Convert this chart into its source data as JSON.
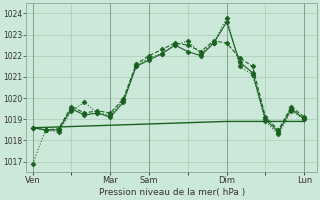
{
  "xlabel": "Pression niveau de la mer( hPa )",
  "background_color": "#cce8d8",
  "grid_color": "#aaccb8",
  "line_color": "#1a6020",
  "ylim": [
    1016.5,
    1024.5
  ],
  "yticks": [
    1017,
    1018,
    1019,
    1020,
    1021,
    1022,
    1023,
    1024
  ],
  "day_labels": [
    "Ven",
    "",
    "Mar",
    "Sam",
    "",
    "Dim",
    "",
    "Lun"
  ],
  "day_positions": [
    0,
    3,
    6,
    9,
    12,
    15,
    18,
    21
  ],
  "xlim": [
    -0.5,
    22.0
  ],
  "series": [
    {
      "x": [
        0,
        1,
        2,
        3,
        4,
        5,
        6,
        7,
        8,
        9,
        10,
        11,
        12,
        13,
        14,
        15,
        16,
        17,
        18,
        19,
        20,
        21
      ],
      "y": [
        1018.6,
        1018.62,
        1018.64,
        1018.66,
        1018.68,
        1018.7,
        1018.72,
        1018.74,
        1018.76,
        1018.78,
        1018.8,
        1018.82,
        1018.84,
        1018.86,
        1018.88,
        1018.9,
        1018.9,
        1018.9,
        1018.9,
        1018.9,
        1018.9,
        1018.9
      ],
      "linestyle": "-",
      "marker": null,
      "markersize": 0,
      "linewidth": 1.0
    },
    {
      "x": [
        0,
        1,
        2,
        3,
        4,
        5,
        6,
        7,
        8,
        9,
        10,
        11,
        12,
        13,
        14,
        15,
        16,
        17,
        18,
        19,
        20,
        21
      ],
      "y": [
        1016.9,
        1018.5,
        1018.4,
        1019.4,
        1019.8,
        1019.3,
        1019.2,
        1019.9,
        1021.5,
        1021.9,
        1022.1,
        1022.5,
        1022.7,
        1022.1,
        1022.6,
        1023.8,
        1021.5,
        1021.1,
        1018.9,
        1018.3,
        1019.4,
        1019.0
      ],
      "linestyle": ":",
      "marker": "D",
      "markersize": 2.5,
      "linewidth": 0.8
    },
    {
      "x": [
        0,
        1,
        2,
        3,
        4,
        5,
        6,
        7,
        8,
        9,
        10,
        11,
        12,
        13,
        14,
        15,
        16,
        17,
        18,
        19,
        20,
        21
      ],
      "y": [
        1018.6,
        1018.5,
        1018.5,
        1019.5,
        1019.2,
        1019.3,
        1019.1,
        1019.8,
        1021.5,
        1021.8,
        1022.1,
        1022.5,
        1022.2,
        1022.0,
        1022.6,
        1023.6,
        1021.7,
        1021.2,
        1019.0,
        1018.4,
        1019.5,
        1019.0
      ],
      "linestyle": "-",
      "marker": "D",
      "markersize": 2.5,
      "linewidth": 0.8
    },
    {
      "x": [
        0,
        1,
        2,
        3,
        4,
        5,
        6,
        7,
        8,
        9,
        10,
        11,
        12,
        13,
        14,
        15,
        16,
        17,
        18,
        19,
        20,
        21
      ],
      "y": [
        1018.6,
        1018.5,
        1018.55,
        1019.6,
        1019.3,
        1019.4,
        1019.3,
        1019.95,
        1021.6,
        1022.0,
        1022.3,
        1022.6,
        1022.5,
        1022.2,
        1022.7,
        1022.6,
        1021.9,
        1021.5,
        1019.1,
        1018.5,
        1019.6,
        1019.1
      ],
      "linestyle": "--",
      "marker": "D",
      "markersize": 2.5,
      "linewidth": 0.8
    }
  ]
}
